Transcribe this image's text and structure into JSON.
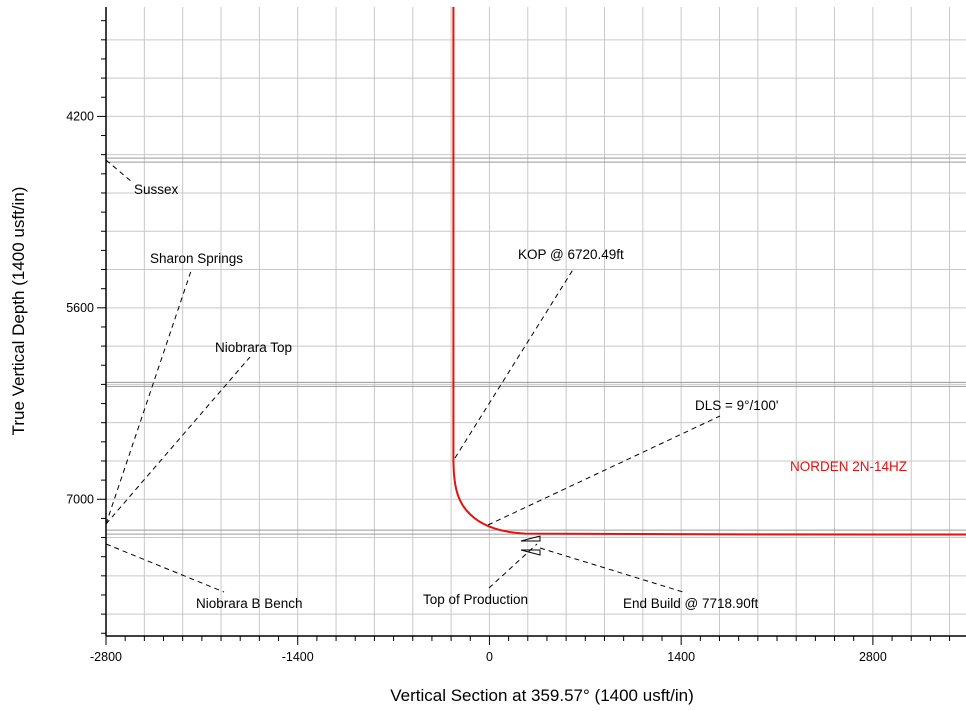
{
  "chart_data": {
    "type": "line",
    "xlabel": "Vertical Section at 359.57° (1400 usft/in)",
    "ylabel": "True Vertical Depth (1400 usft/in)",
    "xlim": [
      -2800,
      3480
    ],
    "ylim": [
      3400,
      8000
    ],
    "y_inverted": true,
    "x_ticks": [
      -2800,
      -1400,
      0,
      1400,
      2800
    ],
    "y_ticks": [
      4200,
      5600,
      7000
    ],
    "grid": true,
    "grid_step": 280,
    "series": [
      {
        "name": "NORDEN 2N-14HZ",
        "color": "#e8100d",
        "x": [
          -263,
          -263,
          -261,
          -255,
          -243,
          -222,
          -190,
          -143,
          -82,
          -5,
          90,
          200,
          320,
          3480
        ],
        "y": [
          3400,
          6720.49,
          6790,
          6860,
          6930,
          6995,
          7055,
          7110,
          7160,
          7200,
          7230,
          7248,
          7255,
          7258
        ]
      }
    ],
    "formation_tops": [
      {
        "name": "Sussex",
        "tvd": 4520
      },
      {
        "name": "Sharon Springs",
        "tvd": 6160
      },
      {
        "name": "Niobrara Top",
        "tvd": 6160
      },
      {
        "name": "Niobrara B Bench",
        "tvd": 7240
      }
    ],
    "annotations": [
      {
        "text": "Sussex"
      },
      {
        "text": "Sharon Springs"
      },
      {
        "text": "Niobrara Top"
      },
      {
        "text": "KOP @ 6720.49ft"
      },
      {
        "text": "DLS = 9°/100'"
      },
      {
        "text": "NORDEN 2N-14HZ"
      },
      {
        "text": "Niobrara B Bench"
      },
      {
        "text": "Top of Production"
      },
      {
        "text": "End Build @ 7718.90ft"
      }
    ]
  }
}
